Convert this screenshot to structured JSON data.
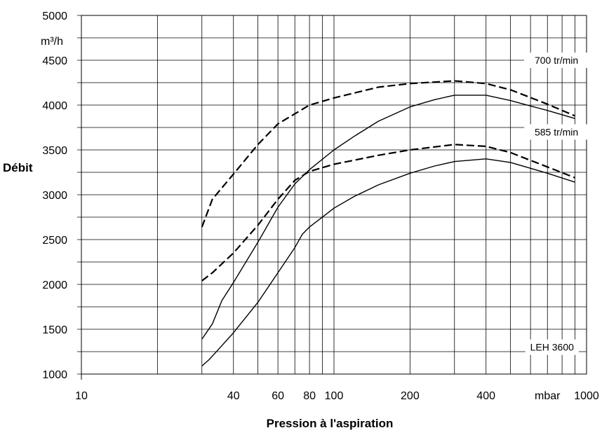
{
  "chart_data": {
    "type": "line",
    "xlabel": "Pression à l'aspiration",
    "ylabel": "Débit",
    "xscale": "log",
    "xlim": [
      10,
      1000
    ],
    "ylim": [
      1000,
      5000
    ],
    "x_tick_labels": [
      {
        "value": 10,
        "label": "10"
      },
      {
        "value": 40,
        "label": "40"
      },
      {
        "value": 60,
        "label": "60"
      },
      {
        "value": 80,
        "label": "80"
      },
      {
        "value": 100,
        "label": "100"
      },
      {
        "value": 200,
        "label": "200"
      },
      {
        "value": 400,
        "label": "400"
      },
      {
        "value": 700,
        "label": "mbar"
      },
      {
        "value": 1000,
        "label": "1000"
      }
    ],
    "y_ticks": [
      1000,
      1500,
      2000,
      2500,
      3000,
      3500,
      4000,
      4500,
      5000
    ],
    "y_unit": "m³/h",
    "grid": true,
    "series": [
      {
        "style": "dashed",
        "points": [
          [
            30,
            2640
          ],
          [
            33,
            2950
          ],
          [
            40,
            3230
          ],
          [
            50,
            3560
          ],
          [
            60,
            3790
          ],
          [
            80,
            4000
          ],
          [
            100,
            4080
          ],
          [
            150,
            4200
          ],
          [
            200,
            4240
          ],
          [
            300,
            4270
          ],
          [
            400,
            4240
          ],
          [
            500,
            4170
          ],
          [
            700,
            4010
          ],
          [
            900,
            3880
          ]
        ]
      },
      {
        "style": "solid",
        "points": [
          [
            30,
            1390
          ],
          [
            33,
            1560
          ],
          [
            36,
            1820
          ],
          [
            40,
            2020
          ],
          [
            50,
            2470
          ],
          [
            60,
            2860
          ],
          [
            70,
            3120
          ],
          [
            80,
            3280
          ],
          [
            100,
            3500
          ],
          [
            120,
            3650
          ],
          [
            150,
            3820
          ],
          [
            200,
            3980
          ],
          [
            250,
            4060
          ],
          [
            300,
            4110
          ],
          [
            400,
            4110
          ],
          [
            500,
            4050
          ],
          [
            700,
            3940
          ],
          [
            900,
            3850
          ]
        ]
      },
      {
        "style": "dashed",
        "points": [
          [
            30,
            2040
          ],
          [
            33,
            2130
          ],
          [
            40,
            2350
          ],
          [
            50,
            2660
          ],
          [
            60,
            2950
          ],
          [
            70,
            3160
          ],
          [
            80,
            3260
          ],
          [
            100,
            3340
          ],
          [
            150,
            3440
          ],
          [
            200,
            3500
          ],
          [
            300,
            3560
          ],
          [
            400,
            3540
          ],
          [
            500,
            3470
          ],
          [
            700,
            3310
          ],
          [
            900,
            3190
          ]
        ]
      },
      {
        "style": "solid",
        "points": [
          [
            30,
            1090
          ],
          [
            32,
            1160
          ],
          [
            34,
            1240
          ],
          [
            40,
            1460
          ],
          [
            50,
            1800
          ],
          [
            60,
            2130
          ],
          [
            70,
            2410
          ],
          [
            75,
            2560
          ],
          [
            80,
            2640
          ],
          [
            100,
            2850
          ],
          [
            120,
            2980
          ],
          [
            150,
            3110
          ],
          [
            200,
            3240
          ],
          [
            250,
            3320
          ],
          [
            300,
            3370
          ],
          [
            400,
            3400
          ],
          [
            500,
            3360
          ],
          [
            700,
            3240
          ],
          [
            900,
            3140
          ]
        ]
      }
    ],
    "annotations": [
      {
        "text": "700 tr/min",
        "x": 760,
        "y": 4500
      },
      {
        "text": "585 tr/min",
        "x": 760,
        "y": 3700
      },
      {
        "text": "LEH 3600",
        "x": 730,
        "y": 1300
      }
    ]
  }
}
